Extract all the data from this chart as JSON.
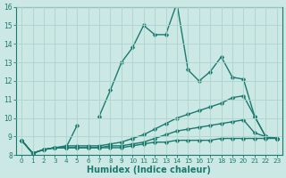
{
  "xlabel": "Humidex (Indice chaleur)",
  "x": [
    0,
    1,
    2,
    3,
    4,
    5,
    6,
    7,
    8,
    9,
    10,
    11,
    12,
    13,
    14,
    15,
    16,
    17,
    18,
    19,
    20,
    21,
    22,
    23
  ],
  "line1": [
    8.8,
    8.1,
    8.3,
    8.4,
    8.4,
    9.6,
    null,
    10.1,
    11.5,
    13.0,
    13.8,
    15.0,
    14.5,
    14.5,
    16.2,
    12.6,
    12.0,
    12.5,
    13.3,
    12.2,
    12.1,
    10.1,
    9.0,
    8.9
  ],
  "line2": [
    8.8,
    8.1,
    8.3,
    8.4,
    8.5,
    8.5,
    8.5,
    8.5,
    8.6,
    8.7,
    8.9,
    9.1,
    9.4,
    9.7,
    10.0,
    10.2,
    10.4,
    10.6,
    10.8,
    11.1,
    11.2,
    10.1,
    9.0,
    8.9
  ],
  "line3": [
    8.8,
    8.1,
    8.3,
    8.4,
    8.4,
    8.4,
    8.4,
    8.4,
    8.5,
    8.5,
    8.6,
    8.7,
    8.9,
    9.1,
    9.3,
    9.4,
    9.5,
    9.6,
    9.7,
    9.8,
    9.9,
    9.2,
    9.0,
    8.9
  ],
  "line4": [
    8.8,
    8.1,
    8.3,
    8.4,
    8.4,
    8.4,
    8.4,
    8.4,
    8.4,
    8.4,
    8.5,
    8.6,
    8.7,
    8.7,
    8.8,
    8.8,
    8.8,
    8.8,
    8.9,
    8.9,
    8.9,
    8.9,
    8.9,
    8.9
  ],
  "line_color": "#1a7a6e",
  "bg_color": "#cce8e4",
  "grid_color": "#add4cf",
  "ylim": [
    8,
    16
  ],
  "yticks": [
    8,
    9,
    10,
    11,
    12,
    13,
    14,
    15,
    16
  ],
  "xlim": [
    -0.5,
    23.5
  ],
  "xticks": [
    0,
    1,
    2,
    3,
    4,
    5,
    6,
    7,
    8,
    9,
    10,
    11,
    12,
    13,
    14,
    15,
    16,
    17,
    18,
    19,
    20,
    21,
    22,
    23
  ],
  "markersize": 2.5,
  "linewidth": 1.0
}
